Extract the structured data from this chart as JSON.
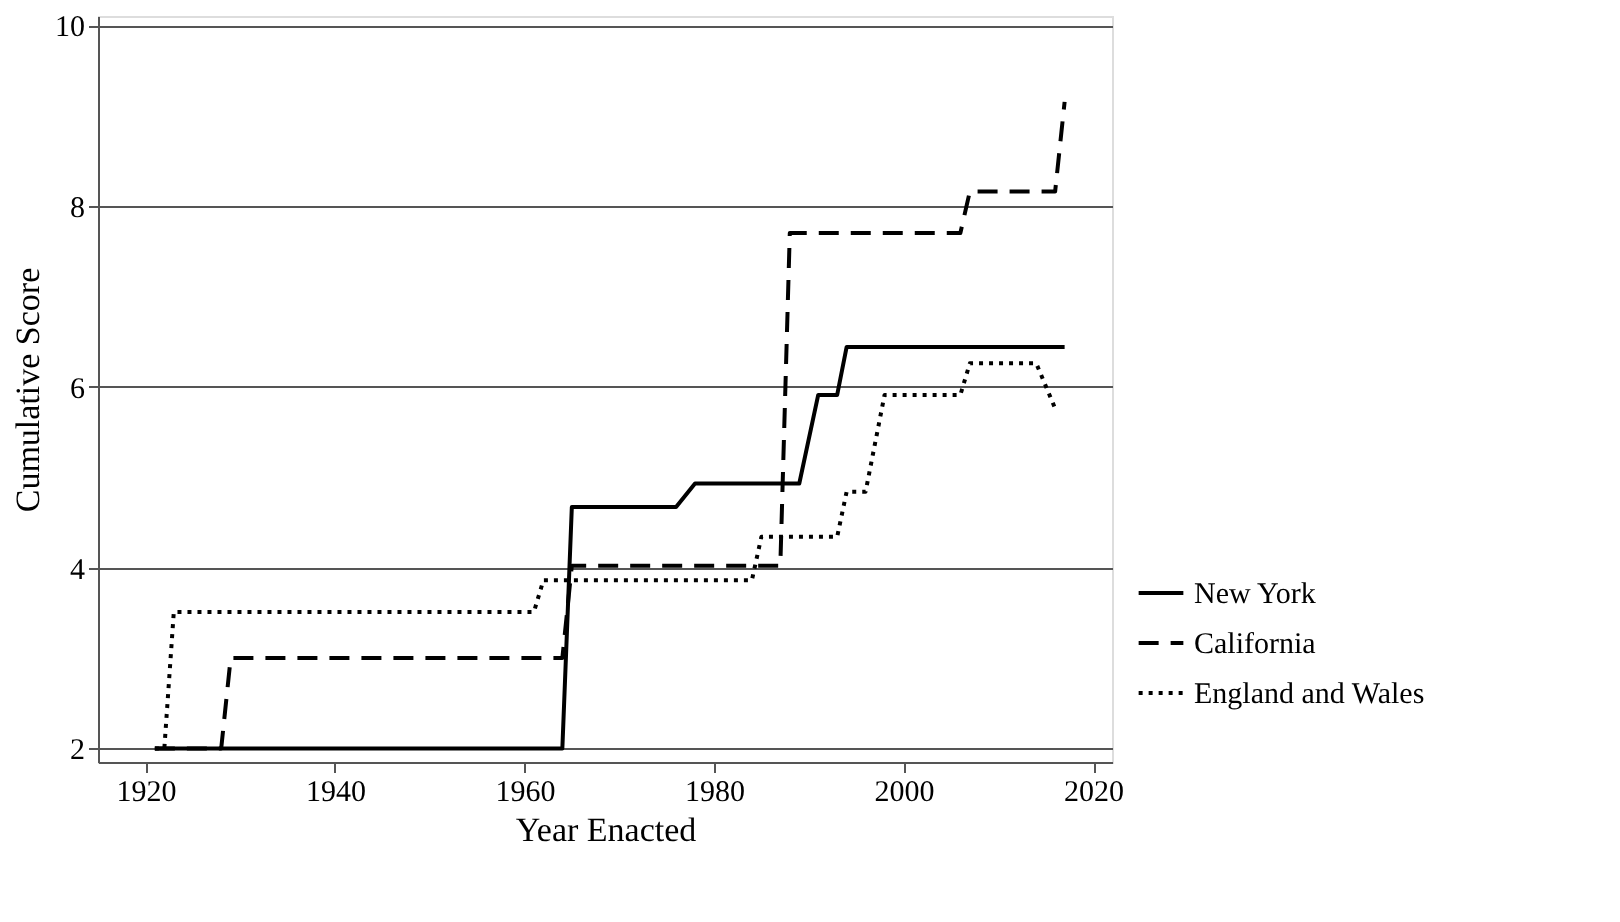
{
  "chart_data": {
    "type": "line",
    "xlabel": "Year Enacted",
    "ylabel": "Cumulative Score",
    "xlim": [
      1915,
      2022
    ],
    "xticks": [
      1920,
      1940,
      1960,
      1980,
      2000,
      2020
    ],
    "ylim": [
      1.85,
      10.1
    ],
    "yticks": [
      2,
      4,
      6,
      8,
      10
    ],
    "grid": "y",
    "legend": "right",
    "marker": "none",
    "series": [
      {
        "name": "New York",
        "color": "#000000",
        "line_style": "solid",
        "x": [
          1921,
          1964,
          1965,
          1976,
          1978,
          1989,
          1991,
          1993,
          1994,
          2017
        ],
        "values": [
          2,
          2,
          4.67,
          4.67,
          4.93,
          4.93,
          5.91,
          5.91,
          6.44,
          6.44
        ]
      },
      {
        "name": "California",
        "color": "#000000",
        "line_style": "dashed",
        "x": [
          1921,
          1928,
          1929,
          1964,
          1965,
          1987,
          1988,
          2006,
          2007,
          2016,
          2017
        ],
        "values": [
          2,
          2,
          3.0,
          3.0,
          4.02,
          4.02,
          7.7,
          7.7,
          8.16,
          8.16,
          9.15
        ]
      },
      {
        "name": "England and Wales",
        "color": "#000000",
        "line_style": "dotted",
        "x": [
          1921,
          1922,
          1923,
          1961,
          1962,
          1984,
          1985,
          1993,
          1994,
          1996,
          1998,
          2006,
          2007,
          2014,
          2016
        ],
        "values": [
          2,
          2,
          3.51,
          3.51,
          3.86,
          3.86,
          4.34,
          4.34,
          4.84,
          4.84,
          5.91,
          5.91,
          6.26,
          6.26,
          5.76
        ]
      }
    ]
  }
}
